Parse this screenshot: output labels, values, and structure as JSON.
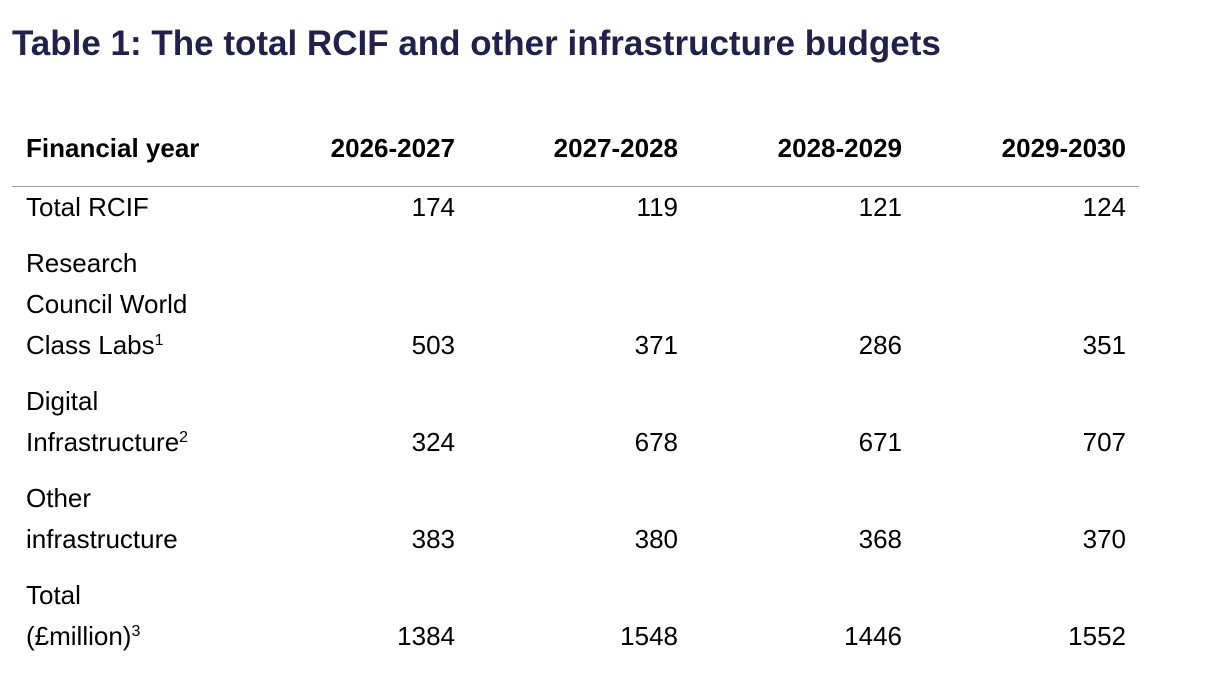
{
  "title": "Table 1: The total RCIF and other infrastructure budgets",
  "header": [
    "Financial year",
    "2026-2027",
    "2027-2028",
    "2028-2029",
    "2029-2030"
  ],
  "rows": [
    {
      "label_lines": [
        "Total RCIF"
      ],
      "sup": "",
      "values": [
        "174",
        "119",
        "121",
        "124"
      ]
    },
    {
      "label_lines": [
        "Research",
        "Council World",
        "Class Labs"
      ],
      "sup": "1",
      "values": [
        "503",
        "371",
        "286",
        "351"
      ]
    },
    {
      "label_lines": [
        "Digital",
        "Infrastructure"
      ],
      "sup": "2",
      "values": [
        "324",
        "678",
        "671",
        "707"
      ]
    },
    {
      "label_lines": [
        "Other",
        "infrastructure"
      ],
      "sup": "",
      "values": [
        "383",
        "380",
        "368",
        "370"
      ]
    },
    {
      "label_lines": [
        "Total",
        "(£million)"
      ],
      "sup": "3",
      "values": [
        "1384",
        "1548",
        "1446",
        "1552"
      ]
    }
  ]
}
